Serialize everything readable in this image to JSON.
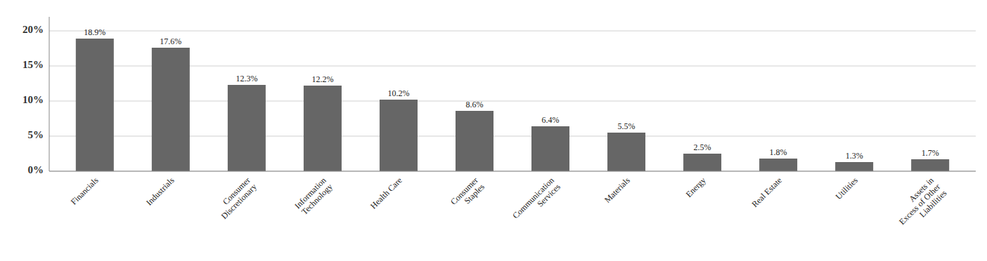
{
  "chart_data": {
    "type": "bar",
    "categories": [
      "Financials",
      "Industrials",
      "Consumer\nDiscretionary",
      "Information\nTechnology",
      "Health Care",
      "Consumer\nStaples",
      "Communication\nServices",
      "Materials",
      "Energy",
      "Real Estate",
      "Utilities",
      "Assets in\nExcess of Other\nLiabilities"
    ],
    "values": [
      18.9,
      17.6,
      12.3,
      12.2,
      10.2,
      8.6,
      6.4,
      5.5,
      2.5,
      1.8,
      1.3,
      1.7
    ],
    "value_labels": [
      "18.9%",
      "17.6%",
      "12.3%",
      "12.2%",
      "10.2%",
      "8.6%",
      "6.4%",
      "5.5%",
      "2.5%",
      "1.8%",
      "1.3%",
      "1.7%"
    ],
    "data_labels": true,
    "color": "#666666",
    "ylim": [
      0,
      22
    ],
    "yticks": [
      {
        "value": 0,
        "label": "0%"
      },
      {
        "value": 5,
        "label": "5%"
      },
      {
        "value": 10,
        "label": "10%"
      },
      {
        "value": 15,
        "label": "15%"
      },
      {
        "value": 20,
        "label": "20%"
      }
    ],
    "grid": true
  }
}
